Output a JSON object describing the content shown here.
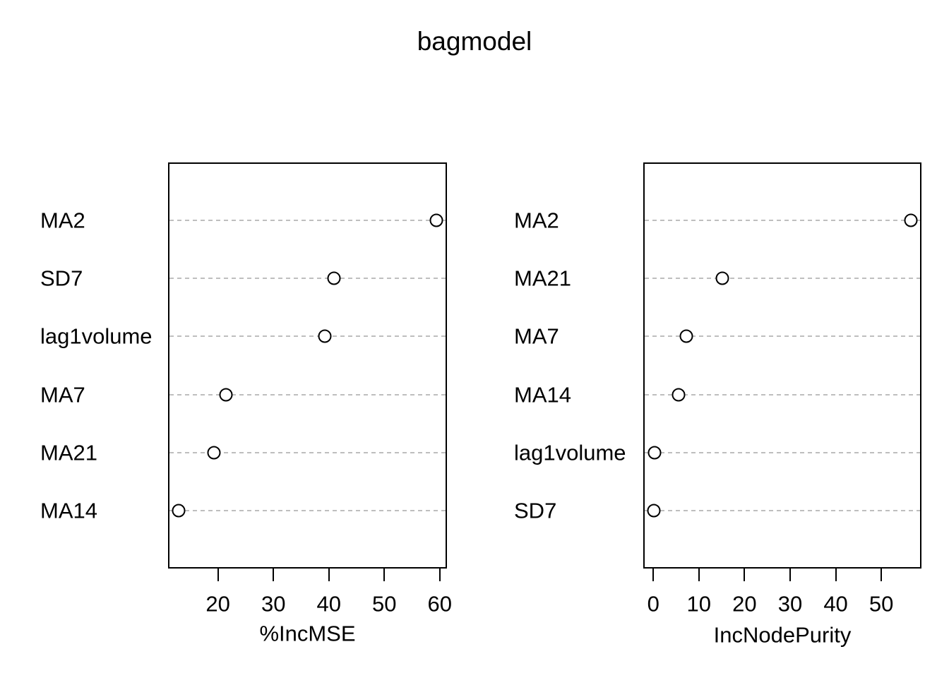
{
  "title": "bagmodel",
  "colors": {
    "background": "#ffffff",
    "axis": "#000000",
    "text": "#000000",
    "gridline": "#bebebe",
    "point_stroke": "#000000",
    "point_fill": "#ffffff"
  },
  "chart_data": [
    {
      "type": "scatter",
      "variant": "dotchart",
      "title": "bagmodel",
      "xlabel": "%IncMSE",
      "ylabel": "",
      "categories": [
        "MA2",
        "SD7",
        "lag1volume",
        "MA7",
        "MA21",
        "MA14"
      ],
      "values": [
        59.4,
        40.9,
        39.3,
        21.4,
        19.3,
        12.9
      ],
      "xticks": [
        20,
        30,
        40,
        50,
        60
      ],
      "xlim": [
        11.0,
        61.3
      ],
      "grid": "horizontal-dashed",
      "marker": "open-circle"
    },
    {
      "type": "scatter",
      "variant": "dotchart",
      "title": "",
      "xlabel": "IncNodePurity",
      "ylabel": "",
      "categories": [
        "MA2",
        "MA21",
        "MA7",
        "MA14",
        "lag1volume",
        "SD7"
      ],
      "values": [
        56.5,
        15.1,
        7.2,
        5.5,
        0.2,
        0.1
      ],
      "xticks": [
        0,
        10,
        20,
        30,
        40,
        50
      ],
      "xlim": [
        -2.2,
        58.8
      ],
      "grid": "horizontal-dashed",
      "marker": "open-circle"
    }
  ]
}
